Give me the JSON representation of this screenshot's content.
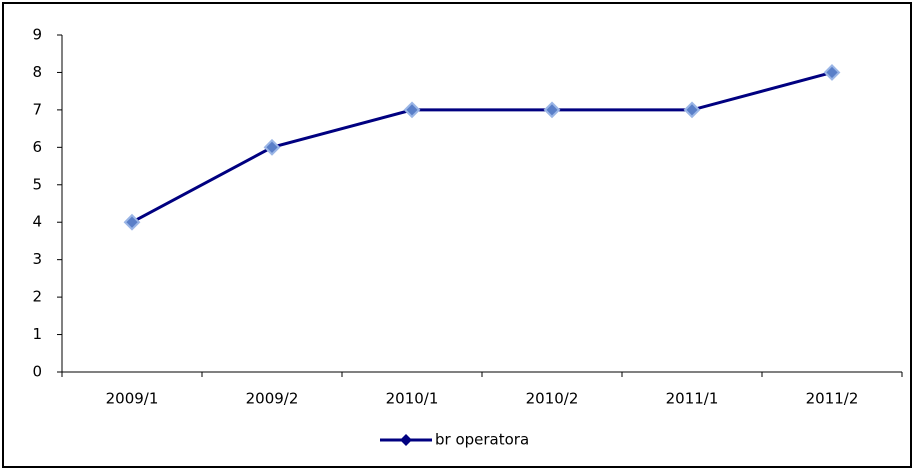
{
  "chart_data": {
    "type": "line",
    "categories": [
      "2009/1",
      "2009/2",
      "2010/1",
      "2010/2",
      "2011/1",
      "2011/2"
    ],
    "series": [
      {
        "name": "br operatora",
        "color": "#000080",
        "values": [
          4,
          6,
          7,
          7,
          7,
          8
        ]
      }
    ],
    "ylim": [
      0,
      9
    ],
    "yticks": [
      0,
      1,
      2,
      3,
      4,
      5,
      6,
      7,
      8,
      9
    ],
    "legend": "bottom"
  }
}
